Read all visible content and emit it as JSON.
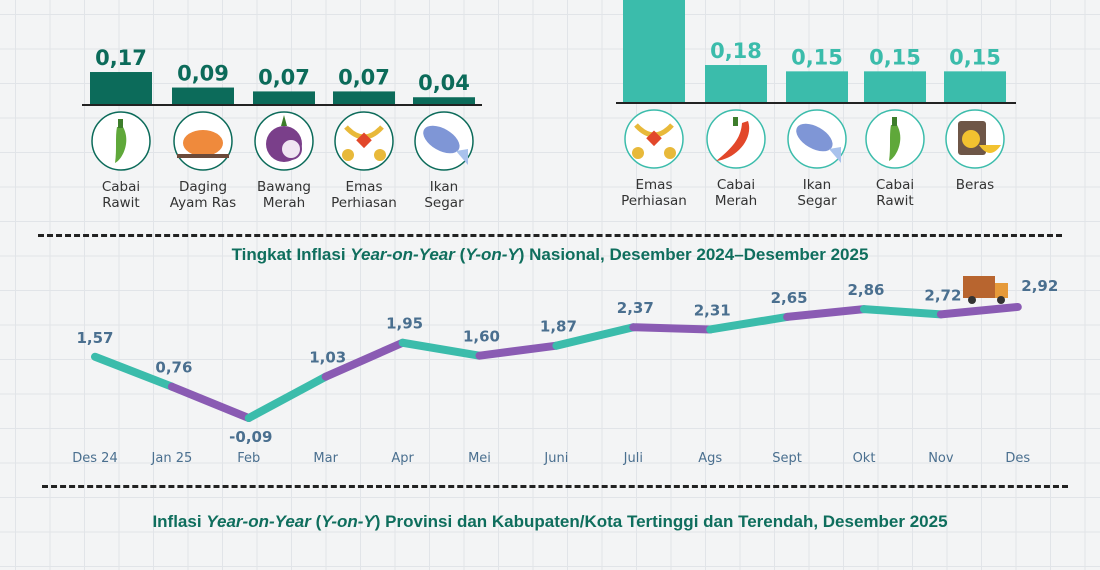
{
  "colors": {
    "dark_green": "#0c6b5a",
    "teal": "#3bbcab",
    "purple": "#8a5bb3",
    "label_blue": "#4a6f8f"
  },
  "chart_data": [
    {
      "type": "bar",
      "title": "",
      "categories": [
        "Cabai Rawit",
        "Daging Ayam Ras",
        "Bawang Merah",
        "Emas Perhiasan",
        "Ikan Segar"
      ],
      "values": [
        0.17,
        0.09,
        0.07,
        0.07,
        0.04
      ],
      "labels": [
        "0,17",
        "0,09",
        "0,07",
        "0,07",
        "0,04"
      ],
      "icons": [
        "green-chili-icon",
        "roast-chicken-icon",
        "shallot-icon",
        "gold-jewelry-icon",
        "fish-icon"
      ],
      "color": "#0c6b5a"
    },
    {
      "type": "bar",
      "title": "",
      "categories": [
        "Emas Perhiasan",
        "Cabai Merah",
        "Ikan Segar",
        "Cabai Rawit",
        "Beras"
      ],
      "values": [
        null,
        0.18,
        0.15,
        0.15,
        0.15
      ],
      "labels": [
        "",
        "0,18",
        "0,15",
        "0,15",
        "0,15"
      ],
      "icons": [
        "gold-jewelry-icon",
        "red-chili-icon",
        "fish-icon",
        "green-chili-icon",
        "rice-icon"
      ],
      "color": "#3bbcab"
    },
    {
      "type": "line",
      "title_pre": "Tingkat Inflasi ",
      "title_it1": "Year-on-Year",
      "title_mid": " (",
      "title_it2": "Y-on-Y",
      "title_post": ") Nasional, Desember 2024–Desember 2025",
      "categories": [
        "Des 24",
        "Jan 25",
        "Feb",
        "Mar",
        "Apr",
        "Mei",
        "Juni",
        "Juli",
        "Ags",
        "Sept",
        "Okt",
        "Nov",
        "Des"
      ],
      "values": [
        1.57,
        0.76,
        -0.09,
        1.03,
        1.95,
        1.6,
        1.87,
        2.37,
        2.31,
        2.65,
        2.86,
        2.72,
        2.92
      ],
      "labels": [
        "1,57",
        "0,76",
        "-0,09",
        "1,03",
        "1,95",
        "1,60",
        "1,87",
        "2,37",
        "2,31",
        "2,65",
        "2,86",
        "2,72",
        "2,92"
      ],
      "segment_colors": [
        "#3bbcab",
        "#8a5bb3"
      ]
    }
  ],
  "bottom": {
    "title_pre": "Inflasi ",
    "title_it1": "Year-on-Year",
    "title_mid": " (",
    "title_it2": "Y-on-Y",
    "title_post": ") Provinsi dan Kabupaten/Kota Tertinggi dan Terendah, Desember 2025"
  }
}
